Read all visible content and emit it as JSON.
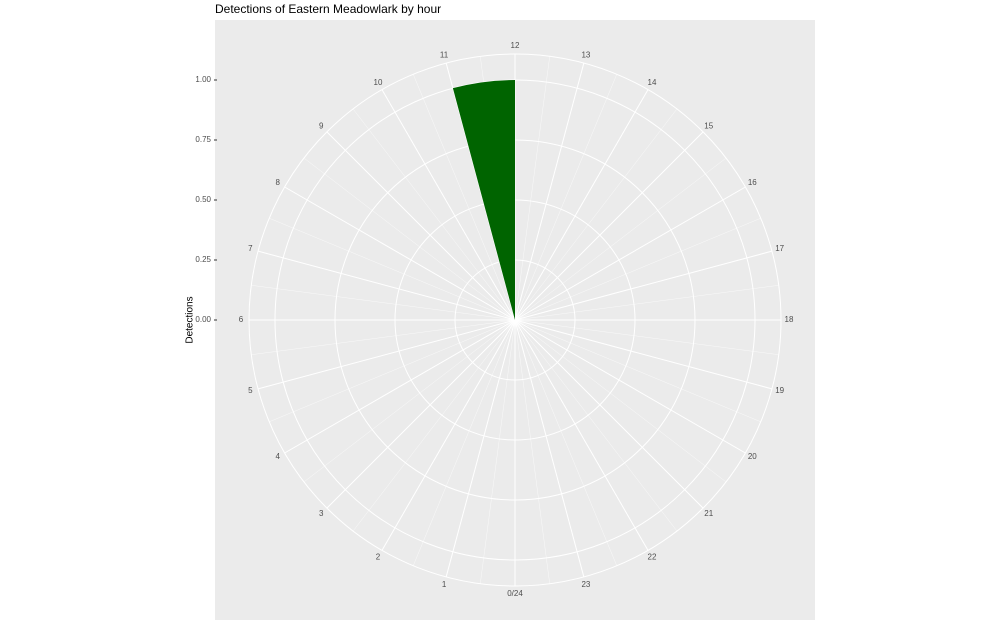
{
  "chart_data": {
    "type": "polar-bar",
    "title": "Detections of Eastern Meadowlark by hour",
    "y_label": "Detections",
    "x": [
      11
    ],
    "values": [
      1
    ],
    "color": "#006400",
    "xlim": [
      0,
      24
    ],
    "xticks": [
      {
        "value": 0,
        "label": "0/24"
      },
      1,
      2,
      3,
      4,
      5,
      6,
      7,
      8,
      9,
      10,
      11,
      12,
      13,
      14,
      15,
      16,
      17,
      18,
      19,
      20,
      21,
      22,
      23
    ],
    "ylim": [
      0,
      1
    ],
    "yticks": [
      {
        "value": 0,
        "label": "0.00"
      },
      {
        "value": 0.25,
        "label": "0.25"
      },
      {
        "value": 0.5,
        "label": "0.50"
      },
      {
        "value": 0.75,
        "label": "0.75"
      },
      {
        "value": 1,
        "label": "1.00"
      }
    ],
    "grid": true
  }
}
